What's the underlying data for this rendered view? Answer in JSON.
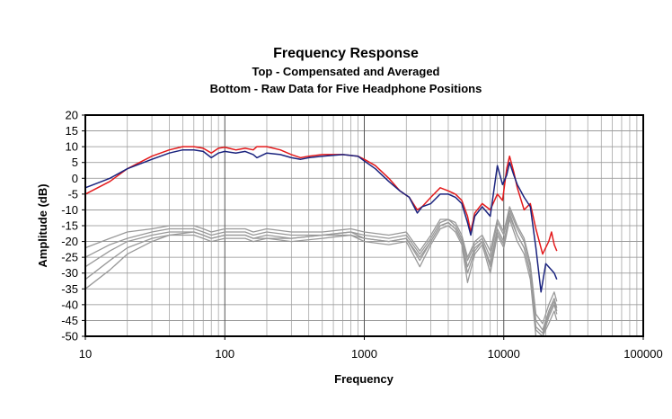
{
  "chart_data": {
    "type": "line",
    "title": "Frequency Response",
    "subtitle_lines": [
      "Top -  Compensated and Averaged",
      "Bottom - Raw Data for Five Headphone Positions"
    ],
    "xlabel": "Frequency",
    "ylabel": "Amplitude (dB)",
    "x_scale": "log",
    "xlim": [
      10,
      100000
    ],
    "ylim": [
      -50,
      20
    ],
    "x_ticks": [
      "10",
      "100",
      "1000",
      "10000",
      "100000"
    ],
    "y_ticks": [
      "20",
      "15",
      "10",
      "5",
      "0",
      "-5",
      "-10",
      "-15",
      "-20",
      "-25",
      "-30",
      "-35",
      "-40",
      "-45",
      "-50"
    ],
    "grid": true,
    "legend": "none",
    "series": [
      {
        "color": "#e31a1c",
        "points": [
          [
            10,
            -5
          ],
          [
            15,
            -1
          ],
          [
            20,
            3
          ],
          [
            30,
            7
          ],
          [
            40,
            9
          ],
          [
            50,
            10
          ],
          [
            60,
            10
          ],
          [
            70,
            9.5
          ],
          [
            80,
            8
          ],
          [
            90,
            9.5
          ],
          [
            100,
            9.8
          ],
          [
            120,
            9
          ],
          [
            140,
            9.5
          ],
          [
            160,
            9
          ],
          [
            170,
            10
          ],
          [
            200,
            10
          ],
          [
            250,
            9
          ],
          [
            300,
            7.5
          ],
          [
            350,
            6.5
          ],
          [
            400,
            7
          ],
          [
            500,
            7.5
          ],
          [
            700,
            7.5
          ],
          [
            900,
            7
          ],
          [
            1000,
            6
          ],
          [
            1200,
            4
          ],
          [
            1500,
            0
          ],
          [
            1800,
            -4
          ],
          [
            2100,
            -6
          ],
          [
            2400,
            -10
          ],
          [
            2600,
            -9
          ],
          [
            3000,
            -6
          ],
          [
            3500,
            -3
          ],
          [
            4000,
            -4
          ],
          [
            4500,
            -5
          ],
          [
            5000,
            -7
          ],
          [
            5500,
            -12
          ],
          [
            5800,
            -17
          ],
          [
            6200,
            -11
          ],
          [
            7000,
            -8
          ],
          [
            8000,
            -10
          ],
          [
            9000,
            -5
          ],
          [
            9800,
            -7
          ],
          [
            10500,
            3
          ],
          [
            11000,
            7
          ],
          [
            11800,
            2
          ],
          [
            12500,
            -3
          ],
          [
            14000,
            -10
          ],
          [
            15500,
            -8
          ],
          [
            17000,
            -16
          ],
          [
            19000,
            -24
          ],
          [
            21000,
            -20
          ],
          [
            22000,
            -17
          ],
          [
            23000,
            -21
          ],
          [
            24000,
            -23
          ]
        ]
      },
      {
        "color": "#1a237e",
        "points": [
          [
            10,
            -3
          ],
          [
            15,
            0
          ],
          [
            20,
            3
          ],
          [
            30,
            6
          ],
          [
            40,
            8
          ],
          [
            50,
            9
          ],
          [
            60,
            9
          ],
          [
            70,
            8.5
          ],
          [
            80,
            6.5
          ],
          [
            90,
            8
          ],
          [
            100,
            8.5
          ],
          [
            120,
            8
          ],
          [
            140,
            8.5
          ],
          [
            160,
            7.5
          ],
          [
            170,
            6.5
          ],
          [
            200,
            8
          ],
          [
            250,
            7.5
          ],
          [
            300,
            6.5
          ],
          [
            350,
            6
          ],
          [
            400,
            6.5
          ],
          [
            500,
            7
          ],
          [
            700,
            7.5
          ],
          [
            900,
            7
          ],
          [
            1000,
            5.5
          ],
          [
            1200,
            3
          ],
          [
            1500,
            -1
          ],
          [
            1800,
            -4
          ],
          [
            2100,
            -6
          ],
          [
            2400,
            -11
          ],
          [
            2600,
            -9
          ],
          [
            3000,
            -8
          ],
          [
            3500,
            -5
          ],
          [
            4000,
            -5
          ],
          [
            4500,
            -6
          ],
          [
            5000,
            -8
          ],
          [
            5500,
            -14
          ],
          [
            5800,
            -18
          ],
          [
            6200,
            -12
          ],
          [
            7000,
            -9
          ],
          [
            8000,
            -12
          ],
          [
            9000,
            4
          ],
          [
            9800,
            -2
          ],
          [
            10500,
            1
          ],
          [
            11000,
            5
          ],
          [
            11800,
            1
          ],
          [
            12500,
            -2
          ],
          [
            14000,
            -6
          ],
          [
            15500,
            -9
          ],
          [
            17000,
            -22
          ],
          [
            18500,
            -36
          ],
          [
            20000,
            -27
          ],
          [
            22000,
            -29
          ],
          [
            23000,
            -30
          ],
          [
            24000,
            -32
          ]
        ]
      },
      {
        "color": "#999999",
        "points": [
          [
            10,
            -28
          ],
          [
            15,
            -23
          ],
          [
            20,
            -20
          ],
          [
            30,
            -18
          ],
          [
            40,
            -17
          ],
          [
            60,
            -17
          ],
          [
            70,
            -18
          ],
          [
            80,
            -19
          ],
          [
            100,
            -18
          ],
          [
            140,
            -18
          ],
          [
            160,
            -19
          ],
          [
            200,
            -18
          ],
          [
            300,
            -19
          ],
          [
            500,
            -18
          ],
          [
            800,
            -17
          ],
          [
            1000,
            -19
          ],
          [
            1500,
            -20
          ],
          [
            2000,
            -19
          ],
          [
            2500,
            -26
          ],
          [
            3000,
            -20
          ],
          [
            3500,
            -15
          ],
          [
            4000,
            -14
          ],
          [
            4500,
            -16
          ],
          [
            5000,
            -20
          ],
          [
            5500,
            -28
          ],
          [
            6200,
            -22
          ],
          [
            7000,
            -20
          ],
          [
            8000,
            -27
          ],
          [
            9000,
            -16
          ],
          [
            10000,
            -20
          ],
          [
            11000,
            -12
          ],
          [
            12500,
            -18
          ],
          [
            14000,
            -22
          ],
          [
            15500,
            -30
          ],
          [
            17000,
            -48
          ],
          [
            19000,
            -50
          ],
          [
            21000,
            -44
          ],
          [
            23000,
            -40
          ],
          [
            24000,
            -43
          ]
        ]
      },
      {
        "color": "#999999",
        "points": [
          [
            10,
            -25
          ],
          [
            15,
            -21
          ],
          [
            20,
            -19
          ],
          [
            30,
            -17
          ],
          [
            40,
            -16
          ],
          [
            60,
            -16
          ],
          [
            70,
            -17
          ],
          [
            80,
            -18
          ],
          [
            100,
            -17
          ],
          [
            140,
            -17
          ],
          [
            160,
            -18
          ],
          [
            200,
            -17
          ],
          [
            300,
            -18
          ],
          [
            500,
            -18
          ],
          [
            800,
            -17
          ],
          [
            1000,
            -18
          ],
          [
            1500,
            -19
          ],
          [
            2000,
            -18
          ],
          [
            2500,
            -24
          ],
          [
            3000,
            -19
          ],
          [
            3500,
            -14
          ],
          [
            4000,
            -13
          ],
          [
            4500,
            -15
          ],
          [
            5000,
            -19
          ],
          [
            5500,
            -26
          ],
          [
            6200,
            -21
          ],
          [
            7000,
            -19
          ],
          [
            8000,
            -25
          ],
          [
            9000,
            -14
          ],
          [
            10000,
            -18
          ],
          [
            11000,
            -10
          ],
          [
            12500,
            -16
          ],
          [
            14000,
            -20
          ],
          [
            15500,
            -28
          ],
          [
            17000,
            -45
          ],
          [
            19000,
            -48
          ],
          [
            21000,
            -42
          ],
          [
            23000,
            -38
          ],
          [
            24000,
            -41
          ]
        ]
      },
      {
        "color": "#999999",
        "points": [
          [
            10,
            -32
          ],
          [
            15,
            -26
          ],
          [
            20,
            -22
          ],
          [
            30,
            -19
          ],
          [
            40,
            -18
          ],
          [
            60,
            -18
          ],
          [
            70,
            -19
          ],
          [
            80,
            -20
          ],
          [
            100,
            -19
          ],
          [
            140,
            -19
          ],
          [
            160,
            -20
          ],
          [
            200,
            -19
          ],
          [
            300,
            -20
          ],
          [
            500,
            -19
          ],
          [
            800,
            -18
          ],
          [
            1000,
            -20
          ],
          [
            1500,
            -21
          ],
          [
            2000,
            -20
          ],
          [
            2500,
            -28
          ],
          [
            3000,
            -21
          ],
          [
            3500,
            -16
          ],
          [
            4000,
            -15
          ],
          [
            4500,
            -17
          ],
          [
            5000,
            -21
          ],
          [
            5500,
            -33
          ],
          [
            6200,
            -24
          ],
          [
            7000,
            -21
          ],
          [
            8000,
            -30
          ],
          [
            9000,
            -18
          ],
          [
            10000,
            -22
          ],
          [
            11000,
            -13
          ],
          [
            12500,
            -20
          ],
          [
            14000,
            -24
          ],
          [
            15500,
            -32
          ],
          [
            17000,
            -50
          ],
          [
            19000,
            -50
          ],
          [
            21000,
            -46
          ],
          [
            23000,
            -42
          ],
          [
            24000,
            -45
          ]
        ]
      },
      {
        "color": "#999999",
        "points": [
          [
            10,
            -35
          ],
          [
            15,
            -29
          ],
          [
            20,
            -24
          ],
          [
            30,
            -20
          ],
          [
            40,
            -18
          ],
          [
            60,
            -17
          ],
          [
            70,
            -18
          ],
          [
            80,
            -19
          ],
          [
            100,
            -18
          ],
          [
            140,
            -18
          ],
          [
            160,
            -19
          ],
          [
            200,
            -19
          ],
          [
            300,
            -19
          ],
          [
            500,
            -18
          ],
          [
            800,
            -18
          ],
          [
            1000,
            -19
          ],
          [
            1500,
            -20
          ],
          [
            2000,
            -19
          ],
          [
            2500,
            -25
          ],
          [
            3000,
            -20
          ],
          [
            3500,
            -15
          ],
          [
            4000,
            -14
          ],
          [
            4500,
            -16
          ],
          [
            5000,
            -20
          ],
          [
            5500,
            -30
          ],
          [
            6200,
            -23
          ],
          [
            7000,
            -20
          ],
          [
            8000,
            -28
          ],
          [
            9000,
            -17
          ],
          [
            10000,
            -21
          ],
          [
            11000,
            -11
          ],
          [
            12500,
            -18
          ],
          [
            14000,
            -22
          ],
          [
            15500,
            -30
          ],
          [
            17000,
            -47
          ],
          [
            19000,
            -49
          ],
          [
            21000,
            -43
          ],
          [
            23000,
            -39
          ],
          [
            24000,
            -42
          ]
        ]
      },
      {
        "color": "#999999",
        "points": [
          [
            10,
            -22
          ],
          [
            15,
            -19
          ],
          [
            20,
            -17
          ],
          [
            30,
            -16
          ],
          [
            40,
            -15
          ],
          [
            60,
            -15
          ],
          [
            70,
            -16
          ],
          [
            80,
            -17
          ],
          [
            100,
            -16
          ],
          [
            140,
            -16
          ],
          [
            160,
            -17
          ],
          [
            200,
            -16
          ],
          [
            300,
            -17
          ],
          [
            500,
            -17
          ],
          [
            800,
            -16
          ],
          [
            1000,
            -17
          ],
          [
            1500,
            -18
          ],
          [
            2000,
            -17
          ],
          [
            2500,
            -23
          ],
          [
            3000,
            -18
          ],
          [
            3500,
            -13
          ],
          [
            4000,
            -13
          ],
          [
            4500,
            -14
          ],
          [
            5000,
            -18
          ],
          [
            5500,
            -25
          ],
          [
            6200,
            -20
          ],
          [
            7000,
            -18
          ],
          [
            8000,
            -23
          ],
          [
            9000,
            -13
          ],
          [
            10000,
            -17
          ],
          [
            11000,
            -9
          ],
          [
            12500,
            -15
          ],
          [
            14000,
            -19
          ],
          [
            15500,
            -27
          ],
          [
            17000,
            -43
          ],
          [
            19000,
            -46
          ],
          [
            21000,
            -40
          ],
          [
            23000,
            -36
          ],
          [
            24000,
            -39
          ]
        ]
      }
    ]
  }
}
